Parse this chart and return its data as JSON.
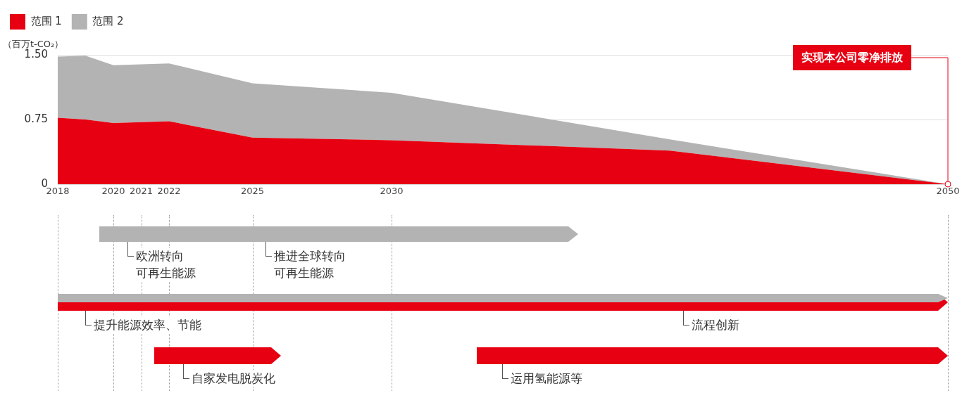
{
  "chart_data": {
    "type": "area",
    "stacked": true,
    "ylabel": "（百万t-CO₂）",
    "x": [
      2018,
      2019,
      2020,
      2021,
      2022,
      2025,
      2030,
      2040,
      2050
    ],
    "series": [
      {
        "name": "范围 1",
        "color": "#e60012",
        "values": [
          0.77,
          0.75,
          0.71,
          0.72,
          0.73,
          0.54,
          0.51,
          0.39,
          0
        ]
      },
      {
        "name": "范围 2",
        "color": "#b3b3b3",
        "values": [
          0.71,
          0.74,
          0.67,
          0.67,
          0.67,
          0.63,
          0.55,
          0.13,
          0
        ]
      }
    ],
    "xlim": [
      2018,
      2050
    ],
    "xticks": [
      2018,
      2020,
      2021,
      2022,
      2025,
      2030,
      2050
    ],
    "ylim": [
      0,
      1.5
    ],
    "yticks": [
      0,
      0.75,
      {
        "value": 1.5,
        "label": "1.50"
      }
    ],
    "grid": "y",
    "legend": "top left",
    "annotations": [
      "实现本公司零净排放",
      "欧洲转向可再生能源",
      "推进全球转向可再生能源",
      "提升能源效率、节能",
      "流程创新",
      "自家发电脱炭化",
      "运用氢能源等"
    ]
  }
}
